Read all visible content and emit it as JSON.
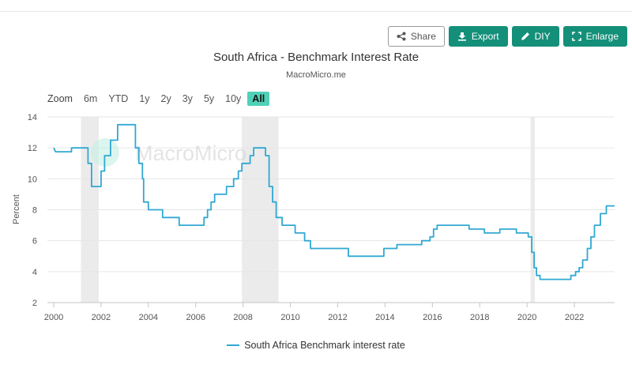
{
  "toolbar": {
    "share": "Share",
    "export": "Export",
    "diy": "DIY",
    "enlarge": "Enlarge",
    "accent": "#148f7a"
  },
  "chart_data": {
    "type": "line",
    "title": "South Africa - Benchmark Interest Rate",
    "subtitle": "MacroMicro.me",
    "watermark": "MacroMicro",
    "ylabel": "Percent",
    "xlabel": "",
    "ylim": [
      2,
      14
    ],
    "yticks": [
      2,
      4,
      6,
      8,
      10,
      12,
      14
    ],
    "xlim": [
      2000,
      2023.7
    ],
    "xticks": [
      "2000",
      "2002",
      "2004",
      "2006",
      "2008",
      "2010",
      "2012",
      "2014",
      "2016",
      "2018",
      "2020",
      "2022"
    ],
    "grid": "horizontal",
    "legend_position": "bottom-center",
    "series_color": "#30a8d3",
    "recession_color": "#ebebeb",
    "recessions": [
      [
        2001.15,
        2001.9
      ],
      [
        2007.95,
        2009.5
      ],
      [
        2020.15,
        2020.33
      ]
    ],
    "series": [
      {
        "name": "South Africa Benchmark interest rate",
        "points": [
          [
            2000.0,
            12.0
          ],
          [
            2000.08,
            11.75
          ],
          [
            2000.75,
            11.75
          ],
          [
            2000.75,
            12.0
          ],
          [
            2001.45,
            12.0
          ],
          [
            2001.45,
            11.0
          ],
          [
            2001.6,
            11.0
          ],
          [
            2001.6,
            9.5
          ],
          [
            2002.0,
            9.5
          ],
          [
            2002.0,
            10.5
          ],
          [
            2002.15,
            10.5
          ],
          [
            2002.15,
            11.5
          ],
          [
            2002.4,
            11.5
          ],
          [
            2002.4,
            12.5
          ],
          [
            2002.7,
            12.5
          ],
          [
            2002.7,
            13.5
          ],
          [
            2003.45,
            13.5
          ],
          [
            2003.45,
            12.0
          ],
          [
            2003.6,
            12.0
          ],
          [
            2003.6,
            11.0
          ],
          [
            2003.75,
            11.0
          ],
          [
            2003.75,
            10.0
          ],
          [
            2003.8,
            10.0
          ],
          [
            2003.8,
            8.5
          ],
          [
            2004.0,
            8.5
          ],
          [
            2004.0,
            8.0
          ],
          [
            2004.6,
            8.0
          ],
          [
            2004.6,
            7.5
          ],
          [
            2005.3,
            7.5
          ],
          [
            2005.3,
            7.0
          ],
          [
            2006.35,
            7.0
          ],
          [
            2006.35,
            7.5
          ],
          [
            2006.5,
            7.5
          ],
          [
            2006.5,
            8.0
          ],
          [
            2006.65,
            8.0
          ],
          [
            2006.65,
            8.5
          ],
          [
            2006.8,
            8.5
          ],
          [
            2006.8,
            9.0
          ],
          [
            2007.3,
            9.0
          ],
          [
            2007.3,
            9.5
          ],
          [
            2007.6,
            9.5
          ],
          [
            2007.6,
            10.0
          ],
          [
            2007.8,
            10.0
          ],
          [
            2007.8,
            10.5
          ],
          [
            2007.95,
            10.5
          ],
          [
            2007.95,
            11.0
          ],
          [
            2008.3,
            11.0
          ],
          [
            2008.3,
            11.5
          ],
          [
            2008.45,
            11.5
          ],
          [
            2008.45,
            12.0
          ],
          [
            2008.95,
            12.0
          ],
          [
            2008.95,
            11.5
          ],
          [
            2009.1,
            11.5
          ],
          [
            2009.1,
            9.5
          ],
          [
            2009.25,
            9.5
          ],
          [
            2009.25,
            8.5
          ],
          [
            2009.4,
            8.5
          ],
          [
            2009.4,
            7.5
          ],
          [
            2009.65,
            7.5
          ],
          [
            2009.65,
            7.0
          ],
          [
            2010.2,
            7.0
          ],
          [
            2010.2,
            6.5
          ],
          [
            2010.6,
            6.5
          ],
          [
            2010.6,
            6.0
          ],
          [
            2010.85,
            6.0
          ],
          [
            2010.85,
            5.5
          ],
          [
            2012.45,
            5.5
          ],
          [
            2012.45,
            5.0
          ],
          [
            2013.95,
            5.0
          ],
          [
            2013.95,
            5.5
          ],
          [
            2014.5,
            5.5
          ],
          [
            2014.5,
            5.75
          ],
          [
            2015.55,
            5.75
          ],
          [
            2015.55,
            6.0
          ],
          [
            2015.9,
            6.0
          ],
          [
            2015.9,
            6.25
          ],
          [
            2016.05,
            6.25
          ],
          [
            2016.05,
            6.75
          ],
          [
            2016.2,
            6.75
          ],
          [
            2016.2,
            7.0
          ],
          [
            2017.55,
            7.0
          ],
          [
            2017.55,
            6.75
          ],
          [
            2018.2,
            6.75
          ],
          [
            2018.2,
            6.5
          ],
          [
            2018.85,
            6.5
          ],
          [
            2018.85,
            6.75
          ],
          [
            2019.55,
            6.75
          ],
          [
            2019.55,
            6.5
          ],
          [
            2020.05,
            6.5
          ],
          [
            2020.05,
            6.25
          ],
          [
            2020.2,
            6.25
          ],
          [
            2020.2,
            5.25
          ],
          [
            2020.3,
            5.25
          ],
          [
            2020.3,
            4.25
          ],
          [
            2020.4,
            4.25
          ],
          [
            2020.4,
            3.75
          ],
          [
            2020.55,
            3.75
          ],
          [
            2020.55,
            3.5
          ],
          [
            2021.85,
            3.5
          ],
          [
            2021.85,
            3.75
          ],
          [
            2022.05,
            3.75
          ],
          [
            2022.05,
            4.0
          ],
          [
            2022.2,
            4.0
          ],
          [
            2022.2,
            4.25
          ],
          [
            2022.35,
            4.25
          ],
          [
            2022.35,
            4.75
          ],
          [
            2022.55,
            4.75
          ],
          [
            2022.55,
            5.5
          ],
          [
            2022.7,
            5.5
          ],
          [
            2022.7,
            6.25
          ],
          [
            2022.85,
            6.25
          ],
          [
            2022.85,
            7.0
          ],
          [
            2023.1,
            7.0
          ],
          [
            2023.1,
            7.75
          ],
          [
            2023.35,
            7.75
          ],
          [
            2023.35,
            8.25
          ],
          [
            2023.7,
            8.25
          ]
        ]
      }
    ]
  },
  "zoom": {
    "label": "Zoom",
    "options": [
      "6m",
      "YTD",
      "1y",
      "2y",
      "3y",
      "5y",
      "10y",
      "All"
    ],
    "selected": "All"
  }
}
